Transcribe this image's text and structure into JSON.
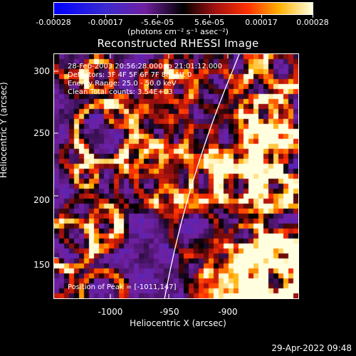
{
  "colorbar": {
    "labels": [
      "-0.00028",
      "-0.00017",
      "-5.6e-05",
      "5.6e-05",
      "0.00017",
      "0.00028"
    ],
    "units": "(photons cm⁻² s⁻¹ asec⁻²)"
  },
  "title": "Reconstructed RHESSI Image",
  "info": {
    "time": "28-Feb-2003 20:56:28.000 to 21:01:12.000",
    "detectors": "Detectors: 3F 4F 5F 6F 7F 8F, Att 0",
    "energy": "Energy Range: 25.0 - 50.0 keV",
    "clean": "Clean     Total counts: 3.54E+03",
    "peak": "Position of Peak = [-1011,147]"
  },
  "axes": {
    "xlabel": "Heliocentric X (arcsec)",
    "ylabel": "Heliocentric Y (arcsec)",
    "xticks": [
      "-1000",
      "-950",
      "-900"
    ],
    "yticks": [
      "300",
      "250",
      "200",
      "150"
    ]
  },
  "timestamp": "29-Apr-2022 09:48",
  "colors": {
    "background": "#000000",
    "low": "#0000ff",
    "mid": "#7020a0",
    "high": "#ffff80"
  },
  "chart_data": {
    "type": "heatmap",
    "title": "Reconstructed RHESSI Image",
    "xlabel": "Heliocentric X (arcsec)",
    "ylabel": "Heliocentric Y (arcsec)",
    "xlim": [
      -1045,
      -940
    ],
    "ylim": [
      118,
      315
    ],
    "color_range": [
      -0.00028,
      0.00028
    ],
    "peak_position": [
      -1011,
      147
    ]
  }
}
